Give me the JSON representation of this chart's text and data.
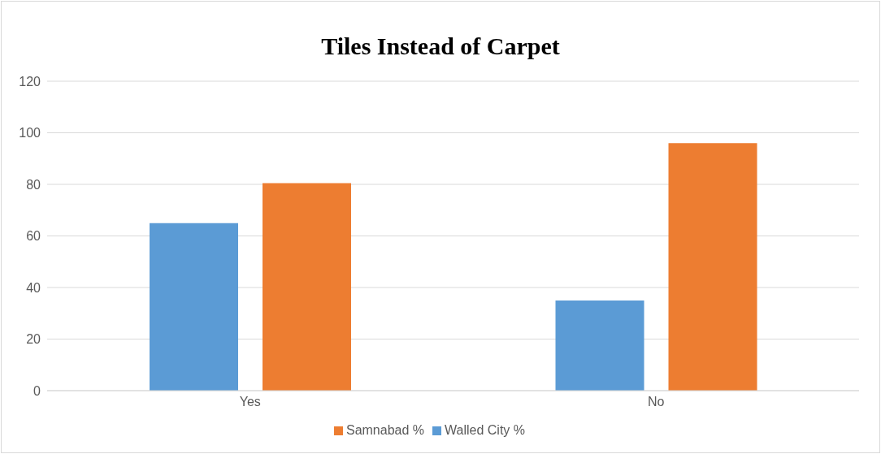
{
  "chart_data": {
    "type": "bar",
    "title": "Tiles Instead of Carpet",
    "categories": [
      "Yes",
      "No"
    ],
    "series": [
      {
        "name": "Walled City %",
        "color": "#5b9bd5",
        "values": [
          65,
          35
        ]
      },
      {
        "name": "Samnabad %",
        "color": "#ed7d31",
        "values": [
          80.5,
          96
        ]
      }
    ],
    "ylim": [
      0,
      120
    ],
    "yticks": [
      0,
      20,
      40,
      60,
      80,
      100,
      120
    ],
    "grid": "y",
    "legend": "bottom"
  }
}
